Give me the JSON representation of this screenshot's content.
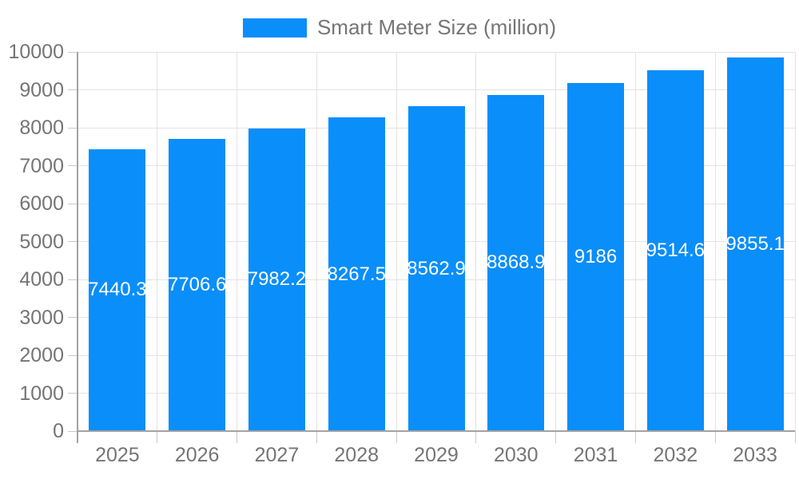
{
  "chart_data": {
    "type": "bar",
    "title": "Smart Meter Size (million)",
    "legend": "Smart Meter Size (million)",
    "legend_position": "top-center",
    "categories": [
      "2025",
      "2026",
      "2027",
      "2028",
      "2029",
      "2030",
      "2031",
      "2032",
      "2033"
    ],
    "values": [
      7440.3,
      7706.6,
      7982.2,
      8267.5,
      8562.9,
      8868.9,
      9186,
      9514.6,
      9855.1
    ],
    "value_labels": [
      "7440.3",
      "7706.6",
      "7982.2",
      "8267.5",
      "8562.9",
      "8868.9",
      "9186",
      "9514.6",
      "9855.1"
    ],
    "value_label_position": "inside-center",
    "xlabel": "",
    "ylabel": "",
    "ylim": [
      0,
      10000
    ],
    "yticks": [
      0,
      1000,
      2000,
      3000,
      4000,
      5000,
      6000,
      7000,
      8000,
      9000,
      10000
    ],
    "grid": true,
    "colors": {
      "bar": "#0A8EFA",
      "grid": "#E3E3E3",
      "axis": "#A3A3A3",
      "tick": "#C9C9C9",
      "tick_label": "#757575",
      "value_label": "#FFFFFF",
      "legend_text": "#757575",
      "background": "#FFFFFF"
    }
  }
}
